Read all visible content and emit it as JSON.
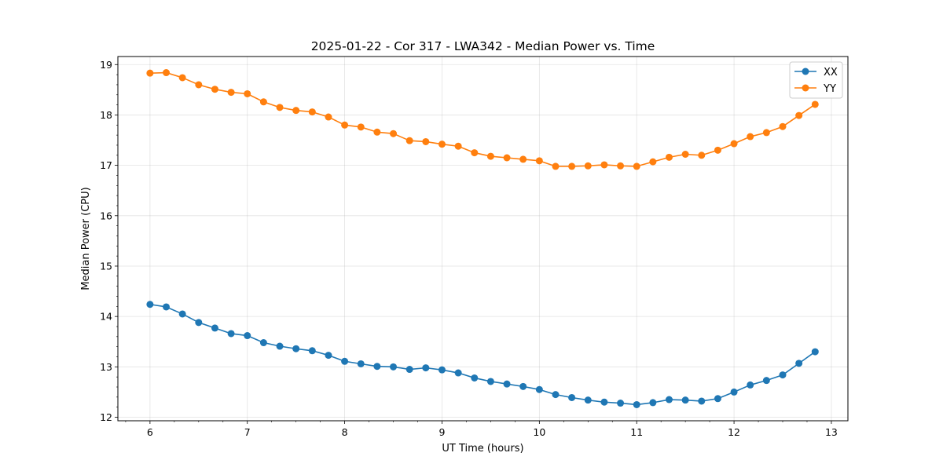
{
  "chart_data": {
    "type": "line",
    "title": "2025-01-22 - Cor 317 - LWA342 - Median Power vs. Time",
    "xlabel": "UT Time (hours)",
    "ylabel": "Median Power (CPU)",
    "xlim": [
      5.67,
      13.17
    ],
    "ylim": [
      11.93,
      19.16
    ],
    "xticks": [
      6,
      7,
      8,
      9,
      10,
      11,
      12,
      13
    ],
    "yticks": [
      12,
      13,
      14,
      15,
      16,
      17,
      18,
      19
    ],
    "grid": true,
    "legend_position": "top-right",
    "x": [
      6.0,
      6.1667,
      6.3333,
      6.5,
      6.6667,
      6.8333,
      7.0,
      7.1667,
      7.3333,
      7.5,
      7.6667,
      7.8333,
      8.0,
      8.1667,
      8.3333,
      8.5,
      8.6667,
      8.8333,
      9.0,
      9.1667,
      9.3333,
      9.5,
      9.6667,
      9.8333,
      10.0,
      10.1667,
      10.3333,
      10.5,
      10.6667,
      10.8333,
      11.0,
      11.1667,
      11.3333,
      11.5,
      11.6667,
      11.8333,
      12.0,
      12.1667,
      12.3333,
      12.5,
      12.6667,
      12.8333
    ],
    "series": [
      {
        "name": "XX",
        "color": "#1f77b4",
        "values": [
          14.24,
          14.19,
          14.05,
          13.88,
          13.77,
          13.66,
          13.62,
          13.48,
          13.41,
          13.36,
          13.32,
          13.23,
          13.11,
          13.06,
          13.01,
          13.0,
          12.95,
          12.98,
          12.94,
          12.88,
          12.78,
          12.71,
          12.66,
          12.61,
          12.55,
          12.45,
          12.39,
          12.34,
          12.3,
          12.28,
          12.25,
          12.29,
          12.35,
          12.34,
          12.32,
          12.37,
          12.5,
          12.64,
          12.73,
          12.84,
          13.07,
          13.3
        ]
      },
      {
        "name": "YY",
        "color": "#ff7f0e",
        "values": [
          18.83,
          18.84,
          18.74,
          18.6,
          18.51,
          18.45,
          18.42,
          18.26,
          18.15,
          18.09,
          18.06,
          17.96,
          17.8,
          17.76,
          17.66,
          17.63,
          17.49,
          17.47,
          17.42,
          17.38,
          17.25,
          17.18,
          17.15,
          17.12,
          17.09,
          16.98,
          16.98,
          16.99,
          17.01,
          16.99,
          16.98,
          17.07,
          17.16,
          17.22,
          17.2,
          17.3,
          17.43,
          17.57,
          17.65,
          17.77,
          17.99,
          18.21
        ]
      }
    ]
  }
}
